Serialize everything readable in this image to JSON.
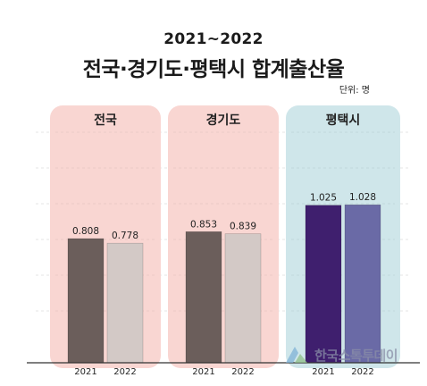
{
  "header": {
    "subtitle": "2021~2022",
    "title": "전국·경기도·평택시 합계출산율",
    "unit": "단위: 명"
  },
  "watermark": {
    "text": "한국스톡투데이",
    "icon": "logo-mark-icon"
  },
  "colors": {
    "nationwide_panel": "#f9d6d2",
    "gyeonggi_panel": "#f9d6d2",
    "pyeongtaek_panel": "#cfe6ea",
    "bar_2021_gray": "#6b5e5b",
    "bar_2022_gray": "#d3c9c6",
    "bar_2021_purple": "#3f1f6e",
    "bar_2022_purple": "#6a6aa6"
  },
  "chart_data": {
    "type": "bar",
    "title": "전국·경기도·평택시 합계출산율",
    "subtitle": "2021~2022",
    "unit": "단위: 명",
    "ylim": [
      0,
      1.2
    ],
    "grid": true,
    "groups": [
      {
        "label": "전국",
        "categories": [
          "2021",
          "2022"
        ],
        "values": [
          0.808,
          0.778
        ],
        "value_labels": [
          "0.808",
          "0.778"
        ]
      },
      {
        "label": "경기도",
        "categories": [
          "2021",
          "2022"
        ],
        "values": [
          0.853,
          0.839
        ],
        "value_labels": [
          "0.853",
          "0.839"
        ]
      },
      {
        "label": "평택시",
        "categories": [
          "2021",
          "2022"
        ],
        "values": [
          1.025,
          1.028
        ],
        "value_labels": [
          "1.025",
          "1.028"
        ]
      }
    ]
  }
}
